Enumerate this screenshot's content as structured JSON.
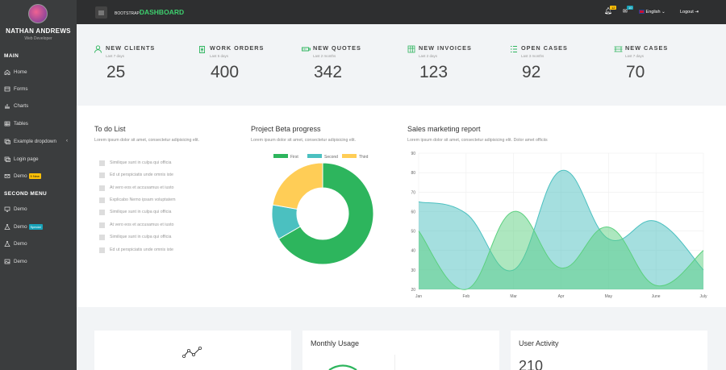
{
  "sidebar": {
    "user_name": "NATHAN ANDREWS",
    "user_role": "Web Developer",
    "section_main": "MAIN",
    "section_second": "SECOND MENU",
    "items": [
      {
        "label": "Home",
        "icon": "home-icon"
      },
      {
        "label": "Forms",
        "icon": "forms-icon"
      },
      {
        "label": "Charts",
        "icon": "charts-icon"
      },
      {
        "label": "Tables",
        "icon": "tables-icon"
      },
      {
        "label": "Example dropdown",
        "icon": "dropdown-icon"
      },
      {
        "label": "Login page",
        "icon": "login-icon"
      },
      {
        "label": "Demo",
        "icon": "mail-icon",
        "badge": "5 New"
      }
    ],
    "second_items": [
      {
        "label": "Demo",
        "icon": "monitor-icon"
      },
      {
        "label": "Demo",
        "icon": "flask-icon",
        "badge": "Special"
      },
      {
        "label": "Demo",
        "icon": "flask-icon"
      },
      {
        "label": "Demo",
        "icon": "image-icon"
      }
    ]
  },
  "topbar": {
    "brand_prefix": "BOOTSTRAP",
    "brand_main": "DASHBOARD",
    "notif_count": "12",
    "mail_count": "10",
    "language": "English",
    "logout": "Logout"
  },
  "stats": [
    {
      "title": "NEW CLIENTS",
      "sub": "Last 7 days",
      "value": "25",
      "icon": "user-icon"
    },
    {
      "title": "WORK ORDERS",
      "sub": "Last 5 days",
      "value": "400",
      "icon": "clipboard-icon"
    },
    {
      "title": "NEW QUOTES",
      "sub": "Last 2 months",
      "value": "342",
      "icon": "quote-icon"
    },
    {
      "title": "NEW INVOICES",
      "sub": "Last 2 days",
      "value": "123",
      "icon": "invoice-icon"
    },
    {
      "title": "OPEN CASES",
      "sub": "Last 3 months",
      "value": "92",
      "icon": "list-icon"
    },
    {
      "title": "NEW CASES",
      "sub": "Last 7 days",
      "value": "70",
      "icon": "cases-icon"
    }
  ],
  "todo": {
    "title": "To do List",
    "subtitle": "Lorem ipsum dolor sit amet, consectetur adipisicing elit.",
    "items": [
      "Similique sunt in culpa qui officia",
      "Ed ut perspiciatis unde omnis iste",
      "At vero eos et accusamus et iusto",
      "Explicabo Nemo ipsam voluptatem",
      "Similique sunt in culpa qui officia",
      "At vero eos et accusamus et iusto",
      "Similique sunt in culpa qui officia",
      "Ed ut perspiciatis unde omnis iste"
    ]
  },
  "project": {
    "title": "Project Beta progress",
    "subtitle": "Lorem ipsum dolor sit amet, consectetur adipisicing elit."
  },
  "sales": {
    "title": "Sales marketing report",
    "subtitle": "Lorem ipsum dolor sit amet, consectetur adipisicing elit. Dolor amet officiis"
  },
  "bottom": {
    "card2_title": "Monthly Usage",
    "card3_title": "User Activity",
    "card3_value": "210"
  },
  "colors": {
    "accent": "#2db55d",
    "teal": "#4bc0c0",
    "yellow": "#ffcd56",
    "sidebar": "#3b3d3e",
    "topbar": "#2e2f30"
  },
  "chart_data": [
    {
      "type": "pie",
      "labels": [
        "First",
        "Second",
        "Third"
      ],
      "values": [
        300,
        50,
        100
      ],
      "colors": [
        "#2db55d",
        "#4bc0c0",
        "#ffcd56"
      ],
      "legend": "top",
      "donut": true
    },
    {
      "type": "area",
      "x": [
        "Jan",
        "Feb",
        "Mar",
        "Apr",
        "May",
        "June",
        "July"
      ],
      "ylim": [
        20,
        90
      ],
      "yticks": [
        20,
        30,
        40,
        50,
        60,
        70,
        80,
        90
      ],
      "grid": true,
      "series": [
        {
          "values": [
            65,
            59,
            30,
            81,
            46,
            55,
            30
          ],
          "color": "#4bc0c0"
        },
        {
          "values": [
            50,
            20,
            60,
            31,
            52,
            22,
            40
          ],
          "color": "#5bd07f"
        }
      ]
    }
  ]
}
